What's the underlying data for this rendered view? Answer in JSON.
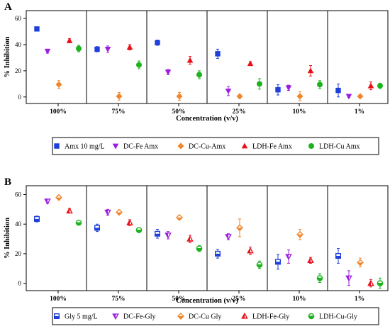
{
  "chart_data": [
    {
      "type": "scatter",
      "panel_label": "A",
      "title": "",
      "xlabel": "Concentration (v/v)",
      "ylabel": "% Inhibition",
      "ylim": [
        -5,
        66
      ],
      "yticks": [
        0,
        20,
        40,
        60
      ],
      "categories": [
        "100%",
        "75%",
        "50%",
        "25%",
        "10%",
        "1%"
      ],
      "legend_position": "bottom",
      "series": [
        {
          "name": "Amx 10 mg/L",
          "color": "#1f3fdc",
          "marker": "square",
          "filled": true,
          "values": [
            52,
            36.5,
            41.5,
            33,
            5.5,
            5
          ],
          "errors": [
            1,
            2,
            2,
            3.5,
            4,
            5
          ]
        },
        {
          "name": "DC-Fe Amx",
          "color": "#9b1fe0",
          "marker": "triangle-down",
          "filled": true,
          "values": [
            35,
            36.5,
            19,
            4.5,
            7,
            0.5
          ],
          "errors": [
            1.5,
            2.5,
            2,
            3.5,
            2,
            1
          ]
        },
        {
          "name": "DC-Cu-Amx",
          "color": "#f0852b",
          "marker": "diamond",
          "filled": true,
          "values": [
            9.5,
            0.5,
            0.5,
            0.5,
            0.5,
            0.5
          ],
          "errors": [
            3,
            3,
            3,
            1.5,
            3.5,
            0.5
          ]
        },
        {
          "name": "LDH-Fe Amx",
          "color": "#e8101a",
          "marker": "triangle-up",
          "filled": true,
          "values": [
            43,
            38,
            28,
            25.5,
            20,
            8.5
          ],
          "errors": [
            1.5,
            2,
            3,
            1.5,
            4,
            3
          ]
        },
        {
          "name": "LDH-Cu Amx",
          "color": "#1cb31c",
          "marker": "circle",
          "filled": true,
          "values": [
            37,
            24.5,
            17,
            10,
            9.5,
            8.5
          ],
          "errors": [
            2.5,
            3,
            3,
            4,
            3,
            2
          ]
        }
      ]
    },
    {
      "type": "scatter",
      "panel_label": "B",
      "title": "",
      "xlabel": "Concentration (v/v)",
      "ylabel": "% Inhibition",
      "ylim": [
        -5,
        66
      ],
      "yticks": [
        0,
        20,
        40,
        60
      ],
      "categories": [
        "100%",
        "75%",
        "50%",
        "25%",
        "10%",
        "1%"
      ],
      "legend_position": "bottom",
      "series": [
        {
          "name": "Gly 5 mg/L",
          "color": "#1f3fdc",
          "marker": "square",
          "filled": false,
          "values": [
            43.5,
            37.5,
            33.5,
            20,
            14.5,
            18.5
          ],
          "errors": [
            2,
            2.5,
            3,
            3,
            5,
            5
          ]
        },
        {
          "name": "DC-Fe-Gly",
          "color": "#9b1fe0",
          "marker": "triangle-down",
          "filled": false,
          "values": [
            55.5,
            48,
            32.5,
            31.5,
            18,
            3.5
          ],
          "errors": [
            1.5,
            2,
            2.5,
            2,
            4.5,
            5
          ]
        },
        {
          "name": "DC-Cu Gly",
          "color": "#f0852b",
          "marker": "diamond",
          "filled": false,
          "values": [
            58,
            48,
            44.5,
            37.5,
            33,
            14
          ],
          "errors": [
            1.5,
            1.5,
            0.5,
            6,
            3.5,
            3
          ]
        },
        {
          "name": "LDH-Fe-Gly",
          "color": "#e8101a",
          "marker": "triangle-up",
          "filled": false,
          "values": [
            49,
            41,
            30,
            22,
            15.5,
            0
          ],
          "errors": [
            1.5,
            2,
            2.5,
            2.5,
            2,
            2.5
          ]
        },
        {
          "name": "LDH-Cu-Gly",
          "color": "#1cb31c",
          "marker": "circle",
          "filled": false,
          "values": [
            41,
            36,
            23.5,
            12.5,
            3.5,
            0
          ],
          "errors": [
            1.5,
            1.5,
            2,
            2.5,
            3,
            3.5
          ]
        }
      ]
    }
  ]
}
